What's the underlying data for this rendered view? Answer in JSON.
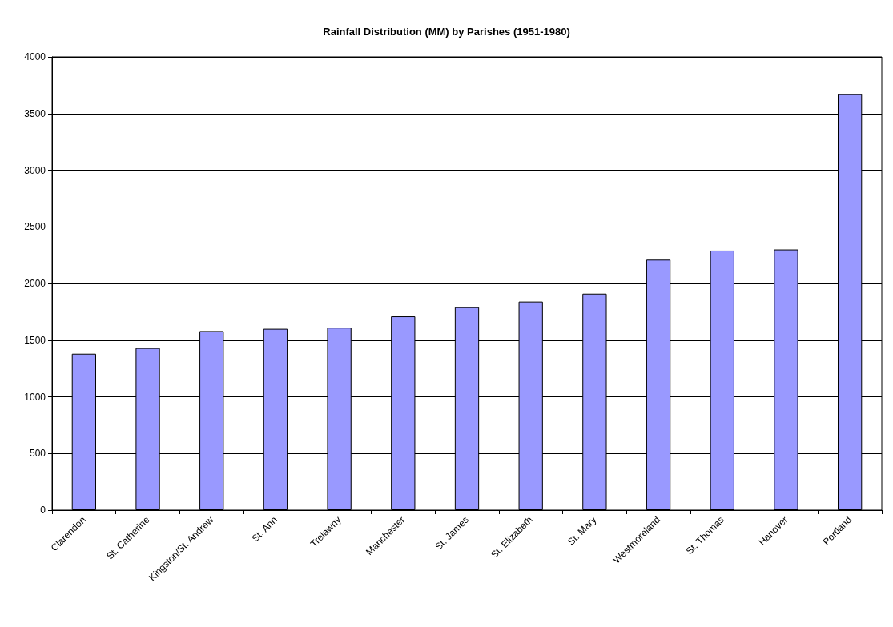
{
  "chart_data": {
    "type": "bar",
    "title": "Rainfall Distribution (MM) by Parishes (1951-1980)",
    "categories": [
      "Clarendon",
      "St. Catherine",
      "Kingston/St. Andrew",
      "St. Ann",
      "Trelawny",
      "Manchester",
      "St. James",
      "St. Elizabeth",
      "St. Mary",
      "Westmoreland",
      "St. Thomas",
      "Hanover",
      "Portland"
    ],
    "values": [
      1380,
      1430,
      1580,
      1600,
      1610,
      1710,
      1790,
      1840,
      1910,
      2210,
      2290,
      2300,
      3670
    ],
    "color": "#9999ff",
    "ylim": [
      0,
      4000
    ],
    "yticks": [
      0,
      500,
      1000,
      1500,
      2000,
      2500,
      3000,
      3500,
      4000
    ],
    "grid": "y"
  }
}
